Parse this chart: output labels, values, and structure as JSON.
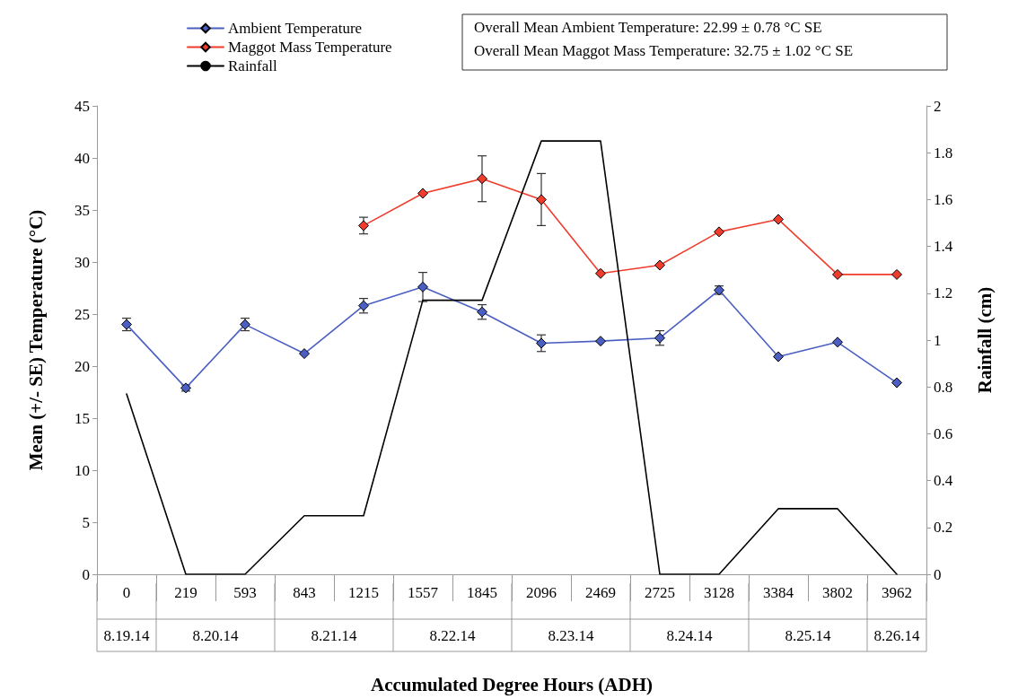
{
  "chart_data": {
    "type": "line",
    "xlabel": "Accumulated Degree Hours (ADH)",
    "ylabel": "Mean (+/- SE) Temperature (°C)",
    "y2label": "Rainfall (cm)",
    "categories": [
      "0",
      "219",
      "593",
      "843",
      "1215",
      "1557",
      "1845",
      "2096",
      "2469",
      "2725",
      "3128",
      "3384",
      "3802",
      "3962"
    ],
    "series": [
      {
        "name": "Ambient Temperature",
        "color": "#4a5fc1",
        "marker": "diamond",
        "values": [
          24.0,
          17.9,
          24.0,
          21.2,
          25.8,
          27.6,
          25.2,
          22.2,
          22.4,
          22.7,
          27.3,
          20.9,
          22.3,
          18.4
        ],
        "errors": [
          0.6,
          0.3,
          0.6,
          null,
          0.7,
          1.4,
          0.7,
          0.8,
          null,
          0.7,
          0.4,
          null,
          null,
          null
        ]
      },
      {
        "name": "Maggot Mass Temperature",
        "color": "#f03c2d",
        "marker": "diamond",
        "values": [
          null,
          null,
          null,
          null,
          33.5,
          36.6,
          38.0,
          36.0,
          28.9,
          29.7,
          32.9,
          34.1,
          28.8,
          28.8
        ],
        "errors": [
          null,
          null,
          null,
          null,
          0.8,
          null,
          2.2,
          2.5,
          null,
          null,
          null,
          null,
          null,
          null
        ]
      },
      {
        "name": "Rainfall",
        "color": "#000000",
        "marker": "none",
        "axis": "y2",
        "values": [
          0.77,
          0,
          0,
          0.25,
          0.25,
          1.17,
          1.17,
          1.85,
          1.85,
          0,
          0,
          0.28,
          0.28,
          0
        ]
      }
    ],
    "ylim": [
      0,
      45
    ],
    "yticks": [
      0,
      5,
      10,
      15,
      20,
      25,
      30,
      35,
      40,
      45
    ],
    "y2lim": [
      0,
      2
    ],
    "y2ticks": [
      0,
      0.2,
      0.4,
      0.6,
      0.8,
      1,
      1.2,
      1.4,
      1.6,
      1.8,
      2
    ],
    "legend": "top left",
    "grid": false,
    "line_style": "solid",
    "annotations": [
      "Overall Mean Ambient Temperature: 22.99 ± 0.78 °C SE",
      "Overall Mean Maggot Mass Temperature: 32.75 ± 1.02 °C SE",
      "8.19.14",
      "8.20.14",
      "8.21.14",
      "8.22.14",
      "8.23.14",
      "8.24.14",
      "8.25.14",
      "8.26.14"
    ]
  }
}
